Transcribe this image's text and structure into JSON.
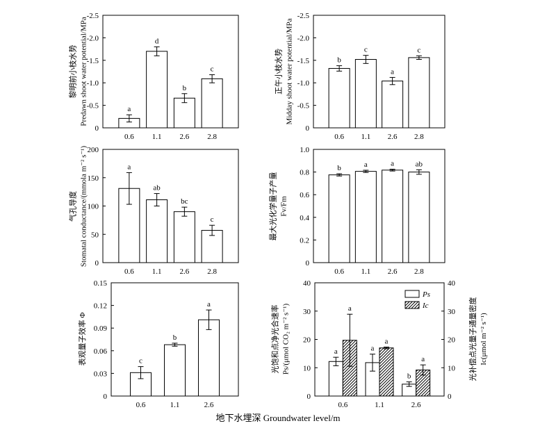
{
  "figure": {
    "xlabel": "地下水埋深 Groundwater level/m"
  },
  "chart_data": [
    {
      "type": "bar",
      "categories": [
        "0.6",
        "1.1",
        "2.6",
        "2.8"
      ],
      "values": [
        -0.21,
        -1.7,
        -0.66,
        -1.09
      ],
      "errors": [
        0.08,
        0.1,
        0.1,
        0.09
      ],
      "letters": [
        "a",
        "d",
        "b",
        "c"
      ],
      "ylabel": [
        "黎明前小枝水势",
        "Predawn shoot water potential/MPa"
      ],
      "ylim": [
        0,
        -2.5
      ],
      "yticks": [
        "0",
        "-0.5",
        "-1.0",
        "-1.5",
        "-2.0",
        "-2.5"
      ]
    },
    {
      "type": "bar",
      "categories": [
        "0.6",
        "1.1",
        "2.6",
        "2.8"
      ],
      "values": [
        -1.32,
        -1.52,
        -1.04,
        -1.56
      ],
      "errors": [
        0.06,
        0.09,
        0.08,
        0.04
      ],
      "letters": [
        "b",
        "c",
        "a",
        "c"
      ],
      "ylabel": [
        "正午小枝水势",
        "Midday shoot water potential/MPa"
      ],
      "ylim": [
        0,
        -2.5
      ],
      "yticks": [
        "0",
        "-0.5",
        "-1.0",
        "-1.5",
        "-2.0",
        "-2.5"
      ]
    },
    {
      "type": "bar",
      "categories": [
        "0.6",
        "1.1",
        "2.6",
        "2.8"
      ],
      "values": [
        131,
        111,
        90,
        57
      ],
      "errors": [
        28,
        11,
        8,
        9
      ],
      "letters": [
        "a",
        "ab",
        "bc",
        "c"
      ],
      "ylabel": [
        "气孔导度",
        "Stomatal conductance/(mmola m⁻² s⁻¹)"
      ],
      "ylim": [
        0,
        200
      ],
      "yticks": [
        "0",
        "50",
        "100",
        "150",
        "200"
      ]
    },
    {
      "type": "bar",
      "categories": [
        "0.6",
        "1.1",
        "2.6",
        "2.8"
      ],
      "values": [
        0.775,
        0.806,
        0.817,
        0.8
      ],
      "errors": [
        0.01,
        0.01,
        0.008,
        0.02
      ],
      "letters": [
        "b",
        "a",
        "a",
        "ab"
      ],
      "ylabel": [
        "最大光化学量子产量",
        "Fv/Fm"
      ],
      "ylim": [
        0,
        1.0
      ],
      "yticks": [
        "0",
        "0.2",
        "0.4",
        "0.6",
        "0.8",
        "1.0"
      ]
    },
    {
      "type": "bar",
      "categories": [
        "0.6",
        "1.1",
        "2.6"
      ],
      "values": [
        0.031,
        0.068,
        0.101
      ],
      "errors": [
        0.008,
        0.002,
        0.013
      ],
      "letters": [
        "c",
        "b",
        "a"
      ],
      "ylabel": [
        "表观量子效率 Φ"
      ],
      "ylim": [
        0,
        0.15
      ],
      "yticks": [
        "0",
        "0.03",
        "0.06",
        "0.09",
        "0.12",
        "0.15"
      ]
    },
    {
      "type": "bar",
      "categories": [
        "0.6",
        "1.1",
        "2.6"
      ],
      "series": [
        {
          "name": "Ps",
          "values": [
            12.2,
            11.8,
            4.2
          ],
          "errors": [
            1.5,
            3.0,
            0.8
          ],
          "letters": [
            "a",
            "a",
            "b"
          ],
          "axis": "left"
        },
        {
          "name": "Ic",
          "values": [
            19.7,
            17.0,
            9.2
          ],
          "errors": [
            9.2,
            0.3,
            1.8
          ],
          "letters": [
            "a",
            "a",
            "a"
          ],
          "axis": "right"
        }
      ],
      "ylabel": [
        "光饱和点净光合速率",
        "Ps/(μmol CO₂ m⁻² s⁻¹)"
      ],
      "y2label": [
        "光补偿点光量子通量密度",
        "Ic(μmol m⁻² s⁻¹)"
      ],
      "ylim": [
        0,
        40
      ],
      "y2lim": [
        0,
        40
      ],
      "yticks": [
        "0",
        "10",
        "20",
        "30",
        "40"
      ],
      "y2ticks": [
        "0",
        "10",
        "20",
        "30",
        "40"
      ],
      "legend": "top-right"
    }
  ]
}
